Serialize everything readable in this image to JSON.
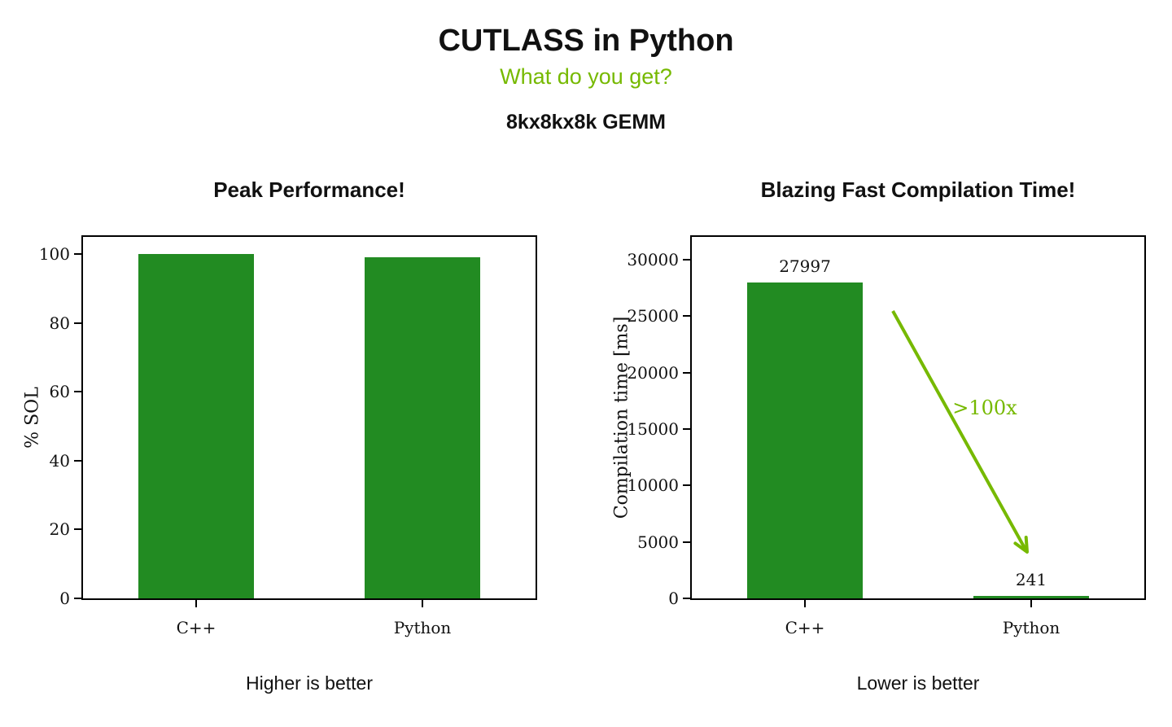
{
  "header": {
    "title": "CUTLASS in Python",
    "subtitle": "What do you get?",
    "benchmark": "8kx8kx8k GEMM"
  },
  "colors": {
    "bar": "#228B22",
    "accent": "#76b900",
    "text": "#111111"
  },
  "chart_data": [
    {
      "type": "bar",
      "title": "Peak Performance!",
      "categories": [
        "C++",
        "Python"
      ],
      "values": [
        100,
        99
      ],
      "xlabel": "",
      "ylabel": "% SOL",
      "ylim": [
        0,
        105
      ],
      "yticks": [
        0,
        20,
        40,
        60,
        80,
        100
      ],
      "grid": false,
      "show_values": false,
      "caption": "Higher is better"
    },
    {
      "type": "bar",
      "title": "Blazing Fast Compilation Time!",
      "categories": [
        "C++",
        "Python"
      ],
      "values": [
        27997,
        241
      ],
      "xlabel": "",
      "ylabel": "Compilation time [ms]",
      "ylim": [
        0,
        32000
      ],
      "yticks": [
        0,
        5000,
        10000,
        15000,
        20000,
        25000,
        30000
      ],
      "grid": false,
      "show_values": true,
      "caption": "Lower is better",
      "annotation": {
        "text": ">100x"
      }
    }
  ]
}
